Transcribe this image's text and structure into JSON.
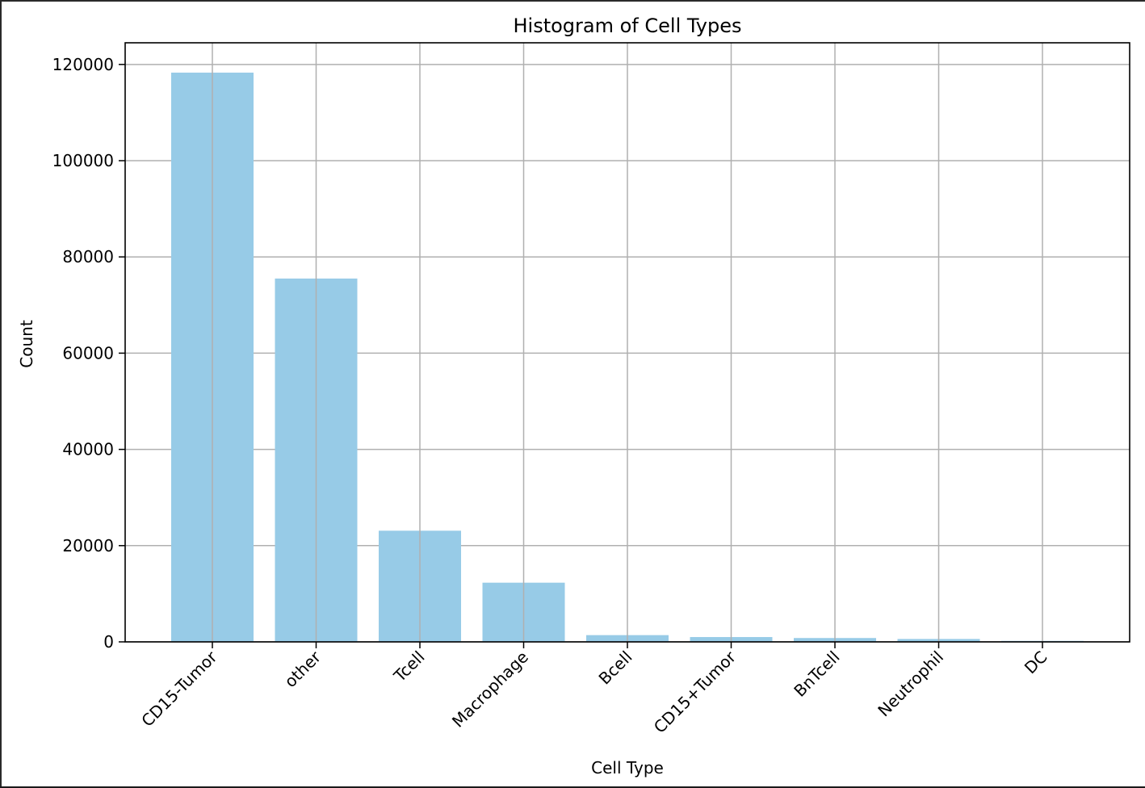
{
  "chart_data": {
    "type": "bar",
    "title": "Histogram of Cell Types",
    "xlabel": "Cell Type",
    "ylabel": "Count",
    "categories": [
      "CD15-Tumor",
      "other",
      "Tcell",
      "Macrophage",
      "Bcell",
      "CD15+Tumor",
      "BnTcell",
      "Neutrophil",
      "DC"
    ],
    "values": [
      118300,
      75500,
      23100,
      12300,
      1400,
      1000,
      800,
      600,
      200
    ],
    "ylim": [
      0,
      124500
    ],
    "yticks": [
      0,
      20000,
      40000,
      60000,
      80000,
      100000,
      120000
    ],
    "ytick_labels": [
      "0",
      "20000",
      "40000",
      "60000",
      "80000",
      "100000",
      "120000"
    ],
    "grid": true,
    "bar_color": "#97cbe7",
    "grid_color": "#b0b0b0"
  }
}
